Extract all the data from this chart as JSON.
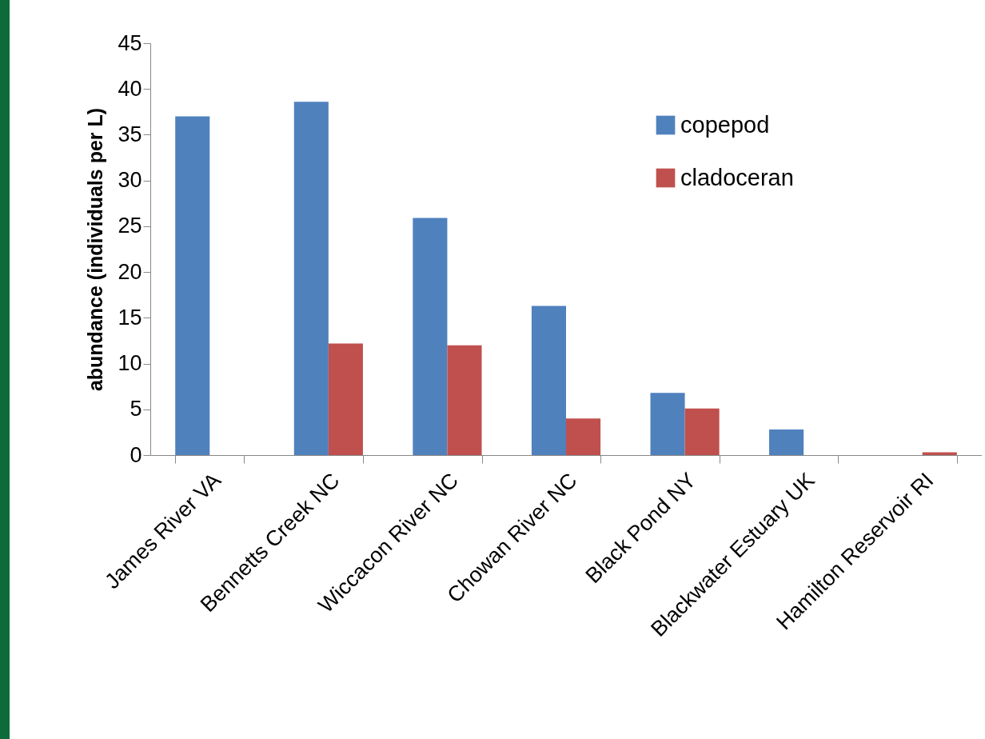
{
  "chart_data": {
    "type": "bar",
    "ylabel": "abundance (individuals per L)",
    "categories": [
      "James River VA",
      "Bennetts Creek NC",
      "Wiccacon River NC",
      "Chowan River NC",
      "Black Pond NY",
      "Blackwater Estuary UK",
      "Hamilton Reservoir RI"
    ],
    "series": [
      {
        "name": "copepod",
        "color": "#4f81bd",
        "values": [
          37,
          38.6,
          25.9,
          16.3,
          6.8,
          2.8,
          0
        ]
      },
      {
        "name": "cladoceran",
        "color": "#c0504d",
        "values": [
          0,
          12.2,
          12,
          4,
          5.1,
          0,
          0.3
        ]
      }
    ],
    "ylim": [
      0,
      45
    ],
    "yticks": [
      0,
      5,
      10,
      15,
      20,
      25,
      30,
      35,
      40,
      45
    ],
    "grid": false,
    "legend": "top right"
  }
}
